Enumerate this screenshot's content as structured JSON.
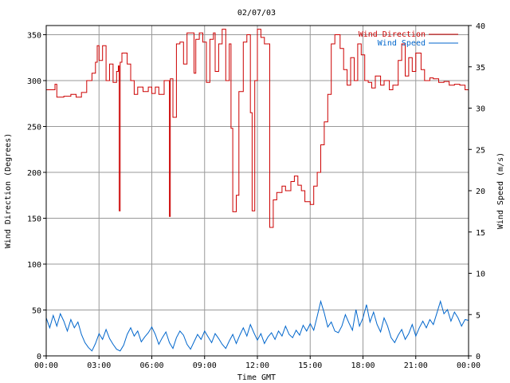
{
  "chart_data": {
    "type": "line",
    "title": "02/07/03",
    "xlabel": "Time GMT",
    "ylabel_left": "Wind Direction (Degrees)",
    "ylabel_right": "Wind Speed (m/s)",
    "x_tick_labels": [
      "00:00",
      "03:00",
      "06:00",
      "09:00",
      "12:00",
      "15:00",
      "18:00",
      "21:00",
      "00:00"
    ],
    "x_range_hours": [
      0,
      24
    ],
    "y_left_ticks": [
      0,
      50,
      100,
      150,
      200,
      250,
      300,
      350
    ],
    "y_left_range": [
      0,
      360
    ],
    "y_right_ticks": [
      0,
      5,
      10,
      15,
      20,
      25,
      30,
      35,
      40
    ],
    "y_right_range": [
      0,
      40
    ],
    "grid": true,
    "legend_position": "top-right",
    "series": [
      {
        "name": "Wind Direction",
        "axis": "left",
        "color": "#cc0000",
        "points": [
          [
            0.0,
            290
          ],
          [
            0.4,
            290
          ],
          [
            0.5,
            296
          ],
          [
            0.6,
            282
          ],
          [
            1.0,
            283
          ],
          [
            1.4,
            285
          ],
          [
            1.7,
            282
          ],
          [
            2.0,
            287
          ],
          [
            2.3,
            300
          ],
          [
            2.6,
            308
          ],
          [
            2.8,
            320
          ],
          [
            2.9,
            338
          ],
          [
            3.0,
            322
          ],
          [
            3.2,
            338
          ],
          [
            3.4,
            300
          ],
          [
            3.6,
            318
          ],
          [
            3.8,
            298
          ],
          [
            4.0,
            310
          ],
          [
            4.1,
            316
          ],
          [
            4.15,
            158
          ],
          [
            4.2,
            320
          ],
          [
            4.3,
            330
          ],
          [
            4.6,
            318
          ],
          [
            4.8,
            300
          ],
          [
            5.0,
            285
          ],
          [
            5.2,
            293
          ],
          [
            5.5,
            288
          ],
          [
            5.8,
            293
          ],
          [
            6.0,
            286
          ],
          [
            6.2,
            293
          ],
          [
            6.4,
            285
          ],
          [
            6.7,
            300
          ],
          [
            6.95,
            300
          ],
          [
            7.0,
            152
          ],
          [
            7.05,
            302
          ],
          [
            7.2,
            260
          ],
          [
            7.4,
            340
          ],
          [
            7.6,
            342
          ],
          [
            7.8,
            318
          ],
          [
            8.0,
            352
          ],
          [
            8.2,
            352
          ],
          [
            8.4,
            308
          ],
          [
            8.5,
            345
          ],
          [
            8.7,
            352
          ],
          [
            8.9,
            342
          ],
          [
            9.1,
            298
          ],
          [
            9.3,
            345
          ],
          [
            9.5,
            352
          ],
          [
            9.6,
            310
          ],
          [
            9.8,
            340
          ],
          [
            10.0,
            356
          ],
          [
            10.2,
            300
          ],
          [
            10.4,
            340
          ],
          [
            10.5,
            248
          ],
          [
            10.6,
            157
          ],
          [
            10.8,
            175
          ],
          [
            10.95,
            288
          ],
          [
            11.2,
            342
          ],
          [
            11.4,
            350
          ],
          [
            11.6,
            265
          ],
          [
            11.7,
            158
          ],
          [
            11.85,
            300
          ],
          [
            12.0,
            356
          ],
          [
            12.2,
            347
          ],
          [
            12.4,
            340
          ],
          [
            12.7,
            140
          ],
          [
            12.9,
            170
          ],
          [
            13.1,
            178
          ],
          [
            13.4,
            185
          ],
          [
            13.6,
            180
          ],
          [
            13.9,
            190
          ],
          [
            14.1,
            196
          ],
          [
            14.3,
            186
          ],
          [
            14.5,
            180
          ],
          [
            14.7,
            168
          ],
          [
            15.0,
            165
          ],
          [
            15.2,
            185
          ],
          [
            15.4,
            200
          ],
          [
            15.6,
            230
          ],
          [
            15.8,
            255
          ],
          [
            16.0,
            285
          ],
          [
            16.2,
            340
          ],
          [
            16.4,
            350
          ],
          [
            16.7,
            335
          ],
          [
            16.9,
            312
          ],
          [
            17.1,
            295
          ],
          [
            17.3,
            325
          ],
          [
            17.5,
            300
          ],
          [
            17.7,
            340
          ],
          [
            17.9,
            328
          ],
          [
            18.1,
            300
          ],
          [
            18.3,
            298
          ],
          [
            18.5,
            292
          ],
          [
            18.7,
            305
          ],
          [
            19.0,
            295
          ],
          [
            19.2,
            300
          ],
          [
            19.5,
            290
          ],
          [
            19.7,
            295
          ],
          [
            20.0,
            322
          ],
          [
            20.2,
            340
          ],
          [
            20.4,
            305
          ],
          [
            20.6,
            325
          ],
          [
            20.8,
            310
          ],
          [
            21.0,
            330
          ],
          [
            21.3,
            312
          ],
          [
            21.5,
            300
          ],
          [
            21.8,
            303
          ],
          [
            22.0,
            302
          ],
          [
            22.3,
            298
          ],
          [
            22.6,
            299
          ],
          [
            22.9,
            295
          ],
          [
            23.2,
            296
          ],
          [
            23.5,
            295
          ],
          [
            23.8,
            290
          ],
          [
            24.0,
            280
          ]
        ]
      },
      {
        "name": "Wind Speed",
        "axis": "right",
        "color": "#0066cc",
        "points": [
          [
            0.0,
            4.6
          ],
          [
            0.2,
            3.4
          ],
          [
            0.4,
            4.9
          ],
          [
            0.6,
            3.6
          ],
          [
            0.8,
            5.1
          ],
          [
            1.0,
            4.2
          ],
          [
            1.2,
            3.0
          ],
          [
            1.4,
            4.4
          ],
          [
            1.6,
            3.4
          ],
          [
            1.8,
            4.1
          ],
          [
            2.0,
            2.6
          ],
          [
            2.2,
            1.6
          ],
          [
            2.4,
            1.0
          ],
          [
            2.6,
            0.6
          ],
          [
            2.8,
            1.5
          ],
          [
            3.0,
            2.7
          ],
          [
            3.2,
            2.0
          ],
          [
            3.4,
            3.2
          ],
          [
            3.6,
            2.1
          ],
          [
            3.8,
            1.4
          ],
          [
            4.0,
            0.8
          ],
          [
            4.2,
            0.6
          ],
          [
            4.4,
            1.3
          ],
          [
            4.6,
            2.6
          ],
          [
            4.8,
            3.4
          ],
          [
            5.0,
            2.4
          ],
          [
            5.2,
            3.0
          ],
          [
            5.4,
            1.7
          ],
          [
            5.6,
            2.3
          ],
          [
            5.8,
            2.8
          ],
          [
            6.0,
            3.5
          ],
          [
            6.2,
            2.6
          ],
          [
            6.4,
            1.4
          ],
          [
            6.6,
            2.2
          ],
          [
            6.8,
            2.9
          ],
          [
            7.0,
            1.6
          ],
          [
            7.2,
            0.9
          ],
          [
            7.4,
            2.2
          ],
          [
            7.6,
            3.0
          ],
          [
            7.8,
            2.5
          ],
          [
            8.0,
            1.4
          ],
          [
            8.2,
            0.8
          ],
          [
            8.4,
            1.7
          ],
          [
            8.6,
            2.6
          ],
          [
            8.8,
            2.0
          ],
          [
            9.0,
            3.0
          ],
          [
            9.2,
            2.3
          ],
          [
            9.4,
            1.6
          ],
          [
            9.6,
            2.7
          ],
          [
            9.8,
            2.1
          ],
          [
            10.0,
            1.4
          ],
          [
            10.2,
            0.9
          ],
          [
            10.4,
            1.8
          ],
          [
            10.6,
            2.6
          ],
          [
            10.8,
            1.5
          ],
          [
            11.0,
            2.5
          ],
          [
            11.2,
            3.4
          ],
          [
            11.4,
            2.4
          ],
          [
            11.6,
            3.8
          ],
          [
            11.8,
            2.8
          ],
          [
            12.0,
            1.9
          ],
          [
            12.2,
            2.7
          ],
          [
            12.4,
            1.5
          ],
          [
            12.6,
            2.3
          ],
          [
            12.8,
            2.8
          ],
          [
            13.0,
            2.0
          ],
          [
            13.2,
            3.0
          ],
          [
            13.4,
            2.4
          ],
          [
            13.6,
            3.6
          ],
          [
            13.8,
            2.6
          ],
          [
            14.0,
            2.2
          ],
          [
            14.2,
            3.1
          ],
          [
            14.4,
            2.5
          ],
          [
            14.6,
            3.7
          ],
          [
            14.8,
            3.0
          ],
          [
            15.0,
            3.9
          ],
          [
            15.2,
            3.1
          ],
          [
            15.4,
            4.8
          ],
          [
            15.6,
            6.6
          ],
          [
            15.8,
            5.2
          ],
          [
            16.0,
            3.5
          ],
          [
            16.2,
            4.1
          ],
          [
            16.4,
            3.0
          ],
          [
            16.6,
            2.8
          ],
          [
            16.8,
            3.6
          ],
          [
            17.0,
            5.0
          ],
          [
            17.2,
            4.0
          ],
          [
            17.4,
            3.1
          ],
          [
            17.6,
            5.6
          ],
          [
            17.8,
            3.6
          ],
          [
            18.0,
            4.6
          ],
          [
            18.2,
            6.2
          ],
          [
            18.4,
            4.1
          ],
          [
            18.6,
            5.3
          ],
          [
            18.8,
            3.8
          ],
          [
            19.0,
            2.9
          ],
          [
            19.2,
            4.6
          ],
          [
            19.4,
            3.6
          ],
          [
            19.6,
            2.2
          ],
          [
            19.8,
            1.6
          ],
          [
            20.0,
            2.5
          ],
          [
            20.2,
            3.2
          ],
          [
            20.4,
            2.0
          ],
          [
            20.6,
            2.7
          ],
          [
            20.8,
            3.8
          ],
          [
            21.0,
            2.4
          ],
          [
            21.2,
            3.4
          ],
          [
            21.4,
            4.2
          ],
          [
            21.6,
            3.4
          ],
          [
            21.8,
            4.4
          ],
          [
            22.0,
            3.8
          ],
          [
            22.2,
            5.2
          ],
          [
            22.4,
            6.6
          ],
          [
            22.6,
            5.1
          ],
          [
            22.8,
            5.6
          ],
          [
            23.0,
            4.2
          ],
          [
            23.2,
            5.3
          ],
          [
            23.4,
            4.6
          ],
          [
            23.6,
            3.6
          ],
          [
            23.8,
            4.4
          ],
          [
            24.0,
            4.3
          ]
        ]
      }
    ]
  }
}
